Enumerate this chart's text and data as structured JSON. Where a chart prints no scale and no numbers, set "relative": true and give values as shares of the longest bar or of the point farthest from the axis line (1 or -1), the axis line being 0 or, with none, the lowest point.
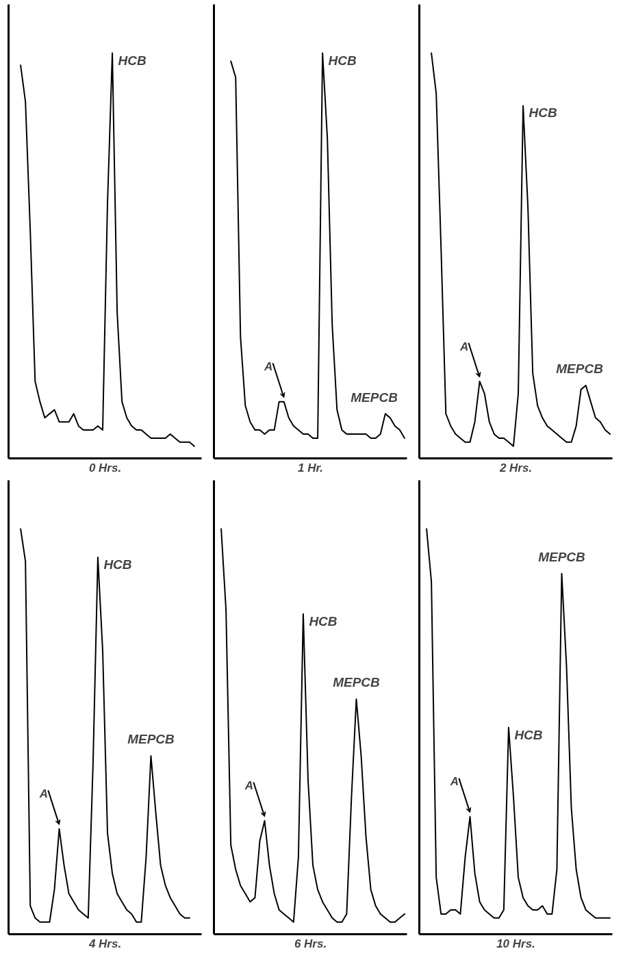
{
  "chart_data": [
    {
      "type": "line",
      "relative": true,
      "tick_labels": false,
      "color": "#000000",
      "xlabel": "0 Hrs.",
      "categories": [
        null,
        null,
        null,
        null,
        null,
        null,
        null,
        null,
        null,
        null,
        null,
        null,
        null,
        null,
        null,
        null,
        null,
        null,
        null,
        null,
        null,
        null,
        null,
        null,
        null,
        null,
        null,
        null,
        null,
        null,
        null,
        null,
        null,
        null,
        null,
        null,
        null,
        null,
        null,
        null
      ],
      "values": [
        null,
        null,
        0.97,
        0.88,
        0.56,
        0.19,
        0.14,
        0.1,
        0.11,
        0.12,
        0.09,
        0.09,
        0.09,
        0.11,
        0.08,
        0.07,
        0.07,
        0.07,
        0.08,
        0.07,
        0.63,
        1.0,
        0.36,
        0.14,
        0.1,
        0.08,
        0.07,
        0.07,
        0.06,
        0.05,
        0.05,
        0.05,
        0.05,
        0.06,
        0.05,
        0.04,
        0.04,
        0.04,
        0.03,
        null
      ],
      "annotations": [
        "HCB"
      ]
    },
    {
      "type": "line",
      "relative": true,
      "tick_labels": false,
      "color": "#000000",
      "xlabel": "1 Hr.",
      "categories": [
        null,
        null,
        null,
        null,
        null,
        null,
        null,
        null,
        null,
        null,
        null,
        null,
        null,
        null,
        null,
        null,
        null,
        null,
        null,
        null,
        null,
        null,
        null,
        null,
        null,
        null,
        null,
        null,
        null,
        null,
        null,
        null,
        null,
        null,
        null,
        null,
        null,
        null,
        null,
        null
      ],
      "values": [
        null,
        null,
        null,
        0.98,
        0.94,
        0.3,
        0.13,
        0.09,
        0.07,
        0.07,
        0.06,
        0.07,
        0.07,
        0.14,
        0.14,
        0.1,
        0.08,
        0.07,
        0.06,
        0.06,
        0.05,
        0.05,
        1.0,
        0.79,
        0.33,
        0.12,
        0.07,
        0.06,
        0.06,
        0.06,
        0.06,
        0.06,
        0.05,
        0.05,
        0.06,
        0.11,
        0.1,
        0.08,
        0.07,
        0.05
      ],
      "annotations": [
        "A",
        "HCB",
        "MEPCB"
      ]
    },
    {
      "type": "line",
      "relative": true,
      "tick_labels": false,
      "color": "#000000",
      "xlabel": "2 Hrs.",
      "categories": [
        null,
        null,
        null,
        null,
        null,
        null,
        null,
        null,
        null,
        null,
        null,
        null,
        null,
        null,
        null,
        null,
        null,
        null,
        null,
        null,
        null,
        null,
        null,
        null,
        null,
        null,
        null,
        null,
        null,
        null,
        null,
        null,
        null,
        null,
        null,
        null,
        null,
        null,
        null,
        null
      ],
      "values": [
        null,
        null,
        1.0,
        0.9,
        0.52,
        0.11,
        0.08,
        0.06,
        0.05,
        0.04,
        0.04,
        0.09,
        0.19,
        0.16,
        0.09,
        0.06,
        0.05,
        0.05,
        0.04,
        0.03,
        0.16,
        0.87,
        0.62,
        0.21,
        0.13,
        0.1,
        0.08,
        0.07,
        0.06,
        0.05,
        0.04,
        0.04,
        0.08,
        0.17,
        0.18,
        0.14,
        0.1,
        0.09,
        0.07,
        0.06
      ],
      "annotations": [
        "A",
        "HCB",
        "MEPCB"
      ]
    },
    {
      "type": "line",
      "relative": true,
      "tick_labels": false,
      "color": "#000000",
      "xlabel": "4 Hrs.",
      "categories": [
        null,
        null,
        null,
        null,
        null,
        null,
        null,
        null,
        null,
        null,
        null,
        null,
        null,
        null,
        null,
        null,
        null,
        null,
        null,
        null,
        null,
        null,
        null,
        null,
        null,
        null,
        null,
        null,
        null,
        null,
        null,
        null,
        null,
        null,
        null,
        null,
        null,
        null,
        null,
        null
      ],
      "values": [
        null,
        null,
        1.0,
        0.92,
        0.07,
        0.04,
        0.03,
        0.03,
        0.03,
        0.11,
        0.26,
        0.17,
        0.1,
        0.08,
        0.06,
        0.05,
        0.04,
        0.42,
        0.93,
        0.7,
        0.25,
        0.15,
        0.1,
        0.08,
        0.06,
        0.05,
        0.03,
        0.03,
        0.19,
        0.44,
        0.3,
        0.17,
        0.12,
        0.09,
        0.07,
        0.05,
        0.04,
        0.04,
        null,
        null
      ],
      "annotations": [
        "A",
        "HCB",
        "MEPCB"
      ]
    },
    {
      "type": "line",
      "relative": true,
      "tick_labels": false,
      "color": "#000000",
      "xlabel": "6 Hrs.",
      "categories": [
        null,
        null,
        null,
        null,
        null,
        null,
        null,
        null,
        null,
        null,
        null,
        null,
        null,
        null,
        null,
        null,
        null,
        null,
        null,
        null,
        null,
        null,
        null,
        null,
        null,
        null,
        null,
        null,
        null,
        null,
        null,
        null,
        null,
        null,
        null,
        null,
        null,
        null,
        null,
        null
      ],
      "values": [
        null,
        1.0,
        0.8,
        0.22,
        0.16,
        0.12,
        0.1,
        0.08,
        0.09,
        0.23,
        0.28,
        0.17,
        0.1,
        0.06,
        0.05,
        0.04,
        0.03,
        0.19,
        0.79,
        0.38,
        0.17,
        0.11,
        0.08,
        0.06,
        0.04,
        0.03,
        0.03,
        0.05,
        0.34,
        0.58,
        0.44,
        0.24,
        0.11,
        0.07,
        0.05,
        0.04,
        0.03,
        0.03,
        0.04,
        0.05
      ],
      "annotations": [
        "A",
        "HCB",
        "MEPCB"
      ]
    },
    {
      "type": "line",
      "relative": true,
      "tick_labels": false,
      "color": "#000000",
      "xlabel": "10 Hrs.",
      "categories": [
        null,
        null,
        null,
        null,
        null,
        null,
        null,
        null,
        null,
        null,
        null,
        null,
        null,
        null,
        null,
        null,
        null,
        null,
        null,
        null,
        null,
        null,
        null,
        null,
        null,
        null,
        null,
        null,
        null,
        null,
        null,
        null,
        null,
        null,
        null,
        null,
        null,
        null,
        null,
        null
      ],
      "values": [
        null,
        1.0,
        0.87,
        0.14,
        0.05,
        0.05,
        0.06,
        0.06,
        0.05,
        0.19,
        0.29,
        0.15,
        0.08,
        0.06,
        0.05,
        0.04,
        0.04,
        0.06,
        0.51,
        0.34,
        0.14,
        0.09,
        0.07,
        0.06,
        0.06,
        0.07,
        0.05,
        0.05,
        0.16,
        0.89,
        0.66,
        0.31,
        0.16,
        0.09,
        0.06,
        0.05,
        0.04,
        0.04,
        0.04,
        0.04
      ],
      "annotations": [
        "A",
        "HCB",
        "MEPCB"
      ]
    }
  ]
}
